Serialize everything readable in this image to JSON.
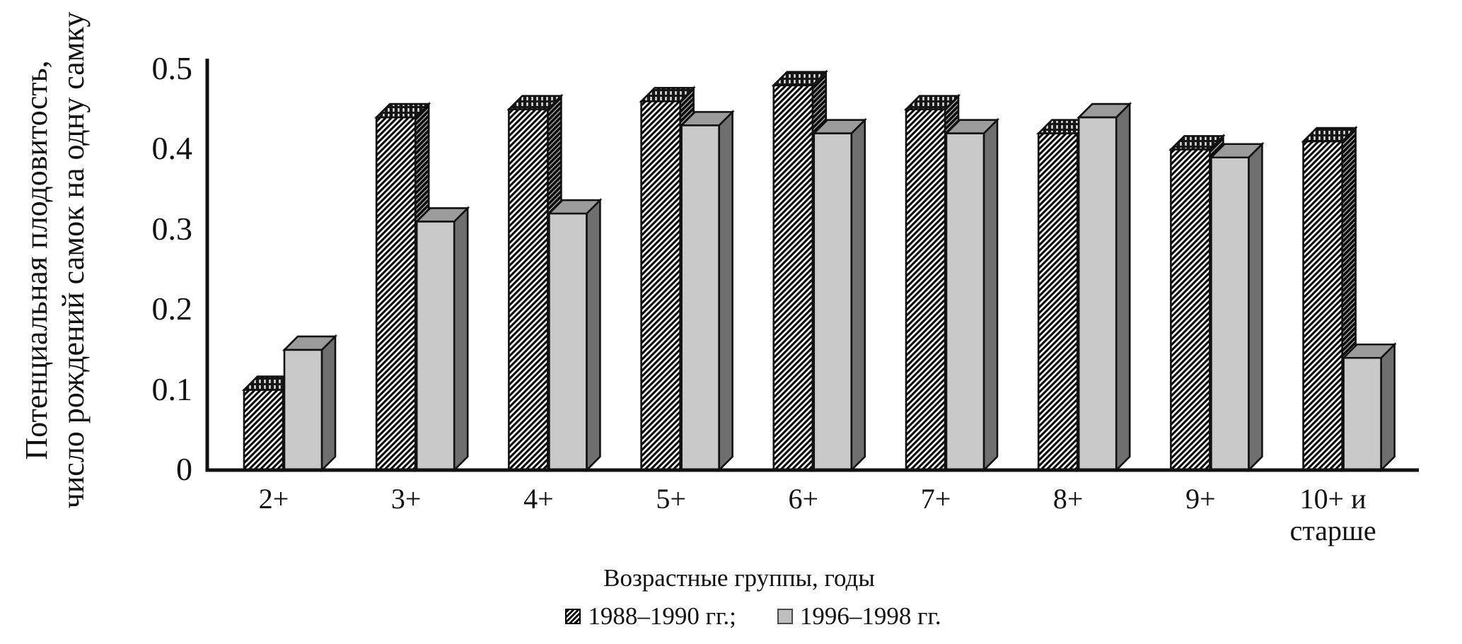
{
  "chart_data": {
    "type": "bar",
    "title": "",
    "categories": [
      "2+",
      "3+",
      "4+",
      "5+",
      "6+",
      "7+",
      "8+",
      "9+",
      "10+ и\nстарше"
    ],
    "series": [
      {
        "name": "1988–1990 гг.",
        "style": "hatched",
        "values": [
          0.1,
          0.44,
          0.45,
          0.46,
          0.48,
          0.45,
          0.42,
          0.4,
          0.41
        ]
      },
      {
        "name": "1996–1998 гг.",
        "style": "gray",
        "values": [
          0.15,
          0.31,
          0.32,
          0.43,
          0.42,
          0.42,
          0.44,
          0.39,
          0.14
        ]
      }
    ],
    "xlabel": "Возрастные группы, годы",
    "ylabel_line1": "Потенциальная плодовитость,",
    "ylabel_line2": "число рождений самок на одну самку",
    "y_ticks": [
      "0",
      "0.1",
      "0.2",
      "0.3",
      "0.4",
      "0.5"
    ],
    "ylim": [
      0,
      0.5
    ],
    "grid": false,
    "legend_position": "bottom",
    "legend": [
      {
        "label": "1988–1990 гг.;"
      },
      {
        "label": "1996–1998 гг."
      }
    ],
    "colors": {
      "bar_gray_front": "#c9c9c9",
      "bar_gray_top": "#9b9b9b",
      "bar_gray_side": "#6f6f6f",
      "hatch_ink": "#000000",
      "axis": "#111111",
      "background": "#ffffff"
    }
  }
}
